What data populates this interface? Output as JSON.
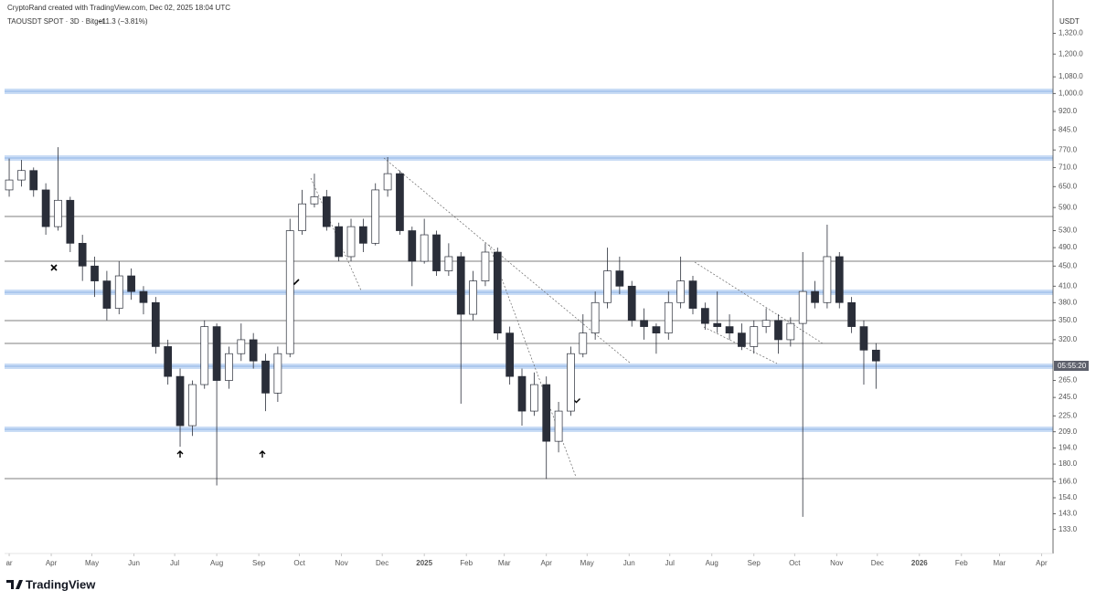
{
  "header": {
    "credit": "CryptoRand created with TradingView.com, Dec 02, 2025 18:04 UTC",
    "symbol": "TAOUSDT SPOT · 3D · Bitget",
    "change": "−11.3 (−3.81%)",
    "currency": "USDT",
    "countdown": "05:55:20",
    "logo": "TradingView"
  },
  "chart_data": {
    "type": "candlestick",
    "log_scale": true,
    "up_color": "#ffffff",
    "down_color": "#2a2e39",
    "outline_color": "#2a2e39",
    "x": [
      0,
      9,
      18,
      27,
      36,
      45,
      54,
      63,
      72,
      81,
      90,
      99,
      108,
      117,
      126,
      135,
      144,
      153,
      162,
      171,
      180,
      189,
      198,
      207,
      216,
      225,
      234,
      243,
      252,
      261,
      270,
      279,
      288,
      297,
      306,
      315,
      324,
      333,
      342,
      351,
      360,
      369,
      378,
      387,
      396,
      405,
      414,
      423,
      432,
      441,
      450,
      459,
      468,
      477,
      486,
      495,
      504,
      513,
      522,
      531,
      540,
      549,
      558,
      567,
      576,
      585,
      594,
      603,
      612,
      621,
      630,
      639
    ],
    "open": [
      640,
      670,
      700,
      640,
      540,
      610,
      500,
      450,
      420,
      370,
      430,
      400,
      380,
      310,
      270,
      215,
      260,
      340,
      265,
      300,
      320,
      290,
      250,
      300,
      530,
      600,
      620,
      540,
      470,
      540,
      500,
      640,
      690,
      530,
      460,
      520,
      440,
      470,
      360,
      420,
      480,
      330,
      270,
      230,
      260,
      200,
      230,
      300,
      330,
      380,
      440,
      410,
      350,
      340,
      330,
      380,
      420,
      370,
      345,
      340,
      330,
      310,
      340,
      350,
      320,
      345,
      400,
      380,
      470,
      380,
      340,
      305
    ],
    "high": [
      740,
      735,
      710,
      660,
      780,
      620,
      520,
      470,
      440,
      460,
      445,
      410,
      390,
      320,
      280,
      265,
      350,
      345,
      310,
      345,
      330,
      300,
      310,
      560,
      640,
      690,
      640,
      550,
      560,
      560,
      660,
      745,
      700,
      540,
      560,
      530,
      500,
      480,
      440,
      500,
      490,
      340,
      280,
      275,
      270,
      240,
      310,
      360,
      400,
      490,
      470,
      420,
      370,
      345,
      400,
      470,
      430,
      380,
      400,
      360,
      345,
      350,
      370,
      360,
      355,
      480,
      420,
      545,
      480,
      390,
      350,
      315
    ],
    "low": [
      620,
      650,
      620,
      520,
      530,
      480,
      420,
      390,
      350,
      360,
      385,
      360,
      300,
      260,
      195,
      205,
      255,
      163,
      255,
      290,
      280,
      230,
      240,
      295,
      520,
      590,
      530,
      460,
      460,
      480,
      495,
      620,
      520,
      410,
      455,
      430,
      430,
      238,
      350,
      410,
      320,
      260,
      215,
      225,
      168,
      190,
      225,
      295,
      320,
      370,
      395,
      340,
      320,
      300,
      320,
      370,
      360,
      335,
      330,
      320,
      305,
      300,
      330,
      300,
      310,
      141,
      370,
      370,
      370,
      330,
      260,
      255
    ],
    "close": [
      670,
      700,
      640,
      540,
      610,
      500,
      450,
      420,
      370,
      430,
      400,
      380,
      310,
      270,
      215,
      260,
      340,
      265,
      300,
      320,
      290,
      250,
      300,
      530,
      600,
      620,
      540,
      470,
      540,
      500,
      640,
      690,
      530,
      460,
      520,
      440,
      470,
      360,
      420,
      480,
      330,
      270,
      230,
      260,
      200,
      230,
      300,
      330,
      380,
      440,
      410,
      350,
      340,
      330,
      380,
      420,
      370,
      345,
      340,
      330,
      310,
      340,
      350,
      320,
      345,
      400,
      380,
      470,
      380,
      340,
      305,
      290
    ],
    "xlim": [
      -3.4,
      769.5
    ],
    "xticks": [
      {
        "value": 0,
        "label": "ar"
      },
      {
        "value": 31,
        "label": "Apr"
      },
      {
        "value": 61,
        "label": "May"
      },
      {
        "value": 92,
        "label": "Jun"
      },
      {
        "value": 122,
        "label": "Jul"
      },
      {
        "value": 153,
        "label": "Aug"
      },
      {
        "value": 184,
        "label": "Sep"
      },
      {
        "value": 214,
        "label": "Oct"
      },
      {
        "value": 245,
        "label": "Nov"
      },
      {
        "value": 275,
        "label": "Dec"
      },
      {
        "value": 306,
        "label": "2025"
      },
      {
        "value": 337,
        "label": "Feb"
      },
      {
        "value": 365,
        "label": "Mar"
      },
      {
        "value": 396,
        "label": "Apr"
      },
      {
        "value": 426,
        "label": "May"
      },
      {
        "value": 457,
        "label": "Jun"
      },
      {
        "value": 487,
        "label": "Jul"
      },
      {
        "value": 518,
        "label": "Aug"
      },
      {
        "value": 549,
        "label": "Sep"
      },
      {
        "value": 579,
        "label": "Oct"
      },
      {
        "value": 610,
        "label": "Nov"
      },
      {
        "value": 640,
        "label": "Dec"
      },
      {
        "value": 671,
        "label": "2026"
      },
      {
        "value": 702,
        "label": "Feb"
      },
      {
        "value": 730,
        "label": "Mar"
      },
      {
        "value": 761,
        "label": "Apr"
      }
    ],
    "ylim": [
      119,
      1541
    ],
    "yticks": [
      {
        "value": 1320,
        "label": "1,320.0"
      },
      {
        "value": 1200,
        "label": "1,200.0"
      },
      {
        "value": 1080,
        "label": "1,080.0"
      },
      {
        "value": 1000,
        "label": "1,000.0"
      },
      {
        "value": 920,
        "label": "920.0"
      },
      {
        "value": 845,
        "label": "845.0"
      },
      {
        "value": 770,
        "label": "770.0"
      },
      {
        "value": 710,
        "label": "710.0"
      },
      {
        "value": 650,
        "label": "650.0"
      },
      {
        "value": 590,
        "label": "590.0"
      },
      {
        "value": 530,
        "label": "530.0"
      },
      {
        "value": 490,
        "label": "490.0"
      },
      {
        "value": 450,
        "label": "450.0"
      },
      {
        "value": 410,
        "label": "410.0"
      },
      {
        "value": 380,
        "label": "380.0"
      },
      {
        "value": 350,
        "label": "350.0"
      },
      {
        "value": 320,
        "label": "320.0"
      },
      {
        "value": 265,
        "label": "265.0"
      },
      {
        "value": 245,
        "label": "245.0"
      },
      {
        "value": 225,
        "label": "225.0"
      },
      {
        "value": 209,
        "label": "209.0"
      },
      {
        "value": 194,
        "label": "194.0"
      },
      {
        "value": 180,
        "label": "180.0"
      },
      {
        "value": 166,
        "label": "166.0"
      },
      {
        "value": 154,
        "label": "154.0"
      },
      {
        "value": 143,
        "label": "143.0"
      },
      {
        "value": 133,
        "label": "133.0"
      }
    ]
  }
}
